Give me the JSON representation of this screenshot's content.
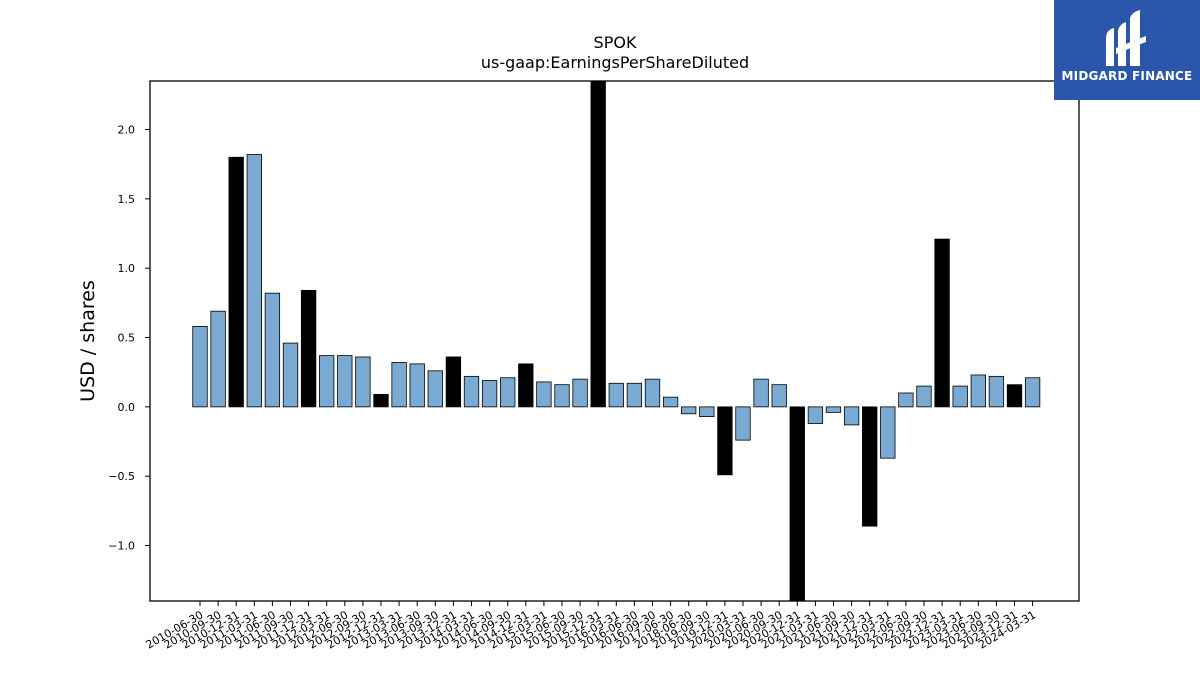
{
  "brand": {
    "name": "MIDGARD FINANCE",
    "color": "#2b56ab"
  },
  "chart_data": {
    "type": "bar",
    "title": "SPOK",
    "subtitle": "us-gaap:EarningsPerShareDiluted",
    "ylabel": "USD / shares",
    "xlabel": "",
    "ylim": [
      -1.4,
      2.35
    ],
    "yticks": [
      -1.0,
      -0.5,
      0.0,
      0.5,
      1.0,
      1.5,
      2.0
    ],
    "grid": false,
    "colors": {
      "quarterly": "#7aaad2",
      "annual": "#000000",
      "edge": "#000000"
    },
    "categories": [
      "2010-06-30",
      "2010-09-30",
      "2010-12-31",
      "2011-03-31",
      "2011-06-30",
      "2011-09-30",
      "2011-12-31",
      "2012-03-31",
      "2012-06-30",
      "2012-09-30",
      "2012-12-31",
      "2013-03-31",
      "2013-06-30",
      "2013-09-30",
      "2013-12-31",
      "2014-03-31",
      "2014-06-30",
      "2014-09-30",
      "2014-12-31",
      "2015-03-31",
      "2015-06-30",
      "2015-09-30",
      "2015-12-31",
      "2016-03-31",
      "2016-06-30",
      "2016-09-30",
      "2017-06-30",
      "2018-06-30",
      "2019-09-30",
      "2019-12-31",
      "2020-03-31",
      "2020-06-30",
      "2020-09-30",
      "2020-12-31",
      "2021-03-31",
      "2021-06-30",
      "2021-09-30",
      "2021-12-31",
      "2022-03-31",
      "2022-06-30",
      "2022-09-30",
      "2022-12-31",
      "2023-03-31",
      "2023-06-30",
      "2023-09-30",
      "2023-12-31",
      "2024-03-31"
    ],
    "values": [
      0.58,
      0.69,
      1.8,
      1.82,
      0.82,
      0.46,
      0.84,
      0.37,
      0.37,
      0.36,
      0.09,
      0.32,
      0.31,
      0.26,
      0.36,
      0.22,
      0.19,
      0.21,
      0.31,
      0.18,
      0.16,
      0.2,
      2.35,
      0.17,
      0.17,
      0.2,
      0.07,
      -0.05,
      -0.07,
      -0.49,
      -0.24,
      0.2,
      0.16,
      -1.4,
      -0.12,
      -0.04,
      -0.13,
      -0.86,
      -0.37,
      0.1,
      0.15,
      1.21,
      0.15,
      0.23,
      0.22,
      0.16,
      0.21
    ],
    "annual": [
      false,
      false,
      true,
      false,
      false,
      false,
      true,
      false,
      false,
      false,
      true,
      false,
      false,
      false,
      true,
      false,
      false,
      false,
      true,
      false,
      false,
      false,
      true,
      false,
      false,
      false,
      false,
      false,
      false,
      true,
      false,
      false,
      false,
      true,
      false,
      false,
      false,
      true,
      false,
      false,
      false,
      true,
      false,
      false,
      false,
      true,
      false
    ]
  }
}
